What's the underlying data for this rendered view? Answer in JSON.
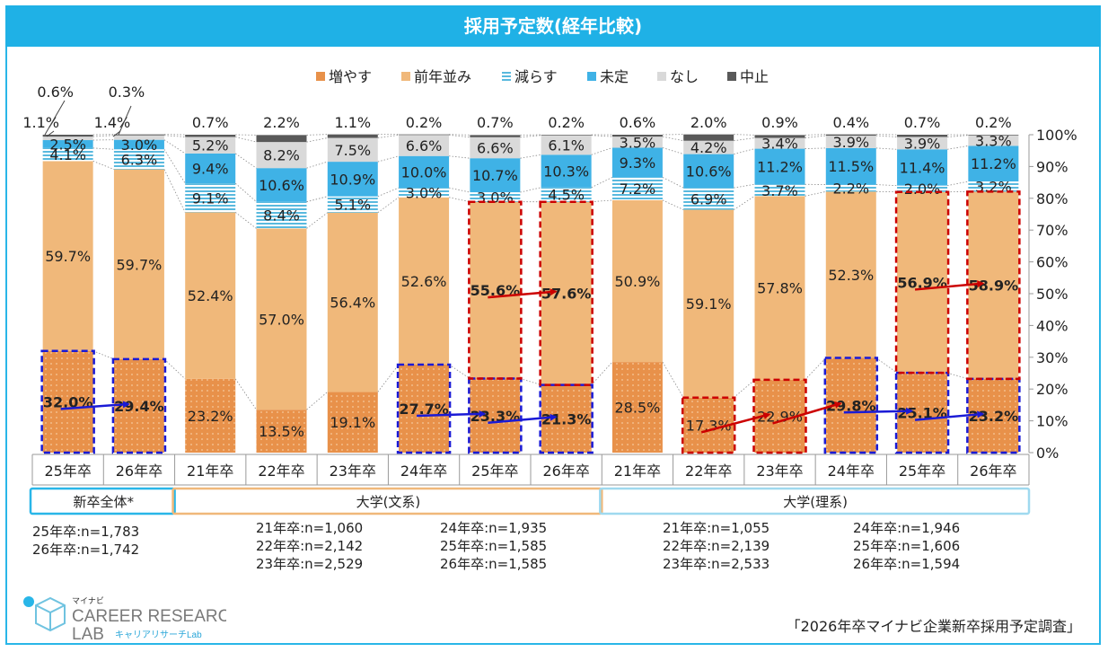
{
  "title": "採用予定数(経年比較)",
  "chart_data": {
    "type": "bar",
    "stacked": true,
    "title": "採用予定数(経年比較)",
    "ylim": [
      0,
      100
    ],
    "y_ticks": [
      "0%",
      "10%",
      "20%",
      "30%",
      "40%",
      "50%",
      "60%",
      "70%",
      "80%",
      "90%",
      "100%"
    ],
    "categories": [
      "25年卒",
      "26年卒",
      "21年卒",
      "22年卒",
      "23年卒",
      "24年卒",
      "25年卒",
      "26年卒",
      "21年卒",
      "22年卒",
      "23年卒",
      "24年卒",
      "25年卒",
      "26年卒"
    ],
    "series": [
      {
        "name": "増やす",
        "color": "#e8914a",
        "values": [
          32.0,
          29.4,
          23.2,
          13.5,
          19.1,
          27.7,
          23.3,
          21.3,
          28.5,
          17.3,
          22.9,
          29.8,
          25.1,
          23.2
        ]
      },
      {
        "name": "前年並み",
        "color": "#f0b87a",
        "values": [
          59.7,
          59.7,
          52.4,
          57.0,
          56.4,
          52.6,
          55.6,
          57.6,
          50.9,
          59.1,
          57.8,
          52.3,
          56.9,
          58.9
        ]
      },
      {
        "name": "減らす",
        "color": "#bfe8f5",
        "values": [
          4.1,
          6.3,
          9.1,
          8.4,
          5.1,
          3.0,
          3.0,
          4.5,
          7.2,
          6.9,
          3.7,
          2.2,
          2.0,
          3.2
        ]
      },
      {
        "name": "未定",
        "color": "#3fb2e6",
        "values": [
          2.5,
          3.0,
          9.4,
          10.6,
          10.9,
          10.0,
          10.7,
          10.3,
          9.3,
          10.6,
          11.2,
          11.5,
          11.4,
          11.2
        ]
      },
      {
        "name": "なし",
        "color": "#d9d9d9",
        "values": [
          1.1,
          1.4,
          5.2,
          8.2,
          7.5,
          6.6,
          6.6,
          6.1,
          3.5,
          4.2,
          3.4,
          3.9,
          3.9,
          3.3
        ]
      },
      {
        "name": "中止",
        "color": "#595959",
        "values": [
          0.6,
          0.3,
          0.7,
          2.2,
          1.1,
          0.2,
          0.7,
          0.2,
          0.6,
          2.0,
          0.9,
          0.4,
          0.7,
          0.2
        ]
      }
    ],
    "bold_labels": [
      {
        "bar": 0,
        "series": 0
      },
      {
        "bar": 1,
        "series": 0
      },
      {
        "bar": 5,
        "series": 0
      },
      {
        "bar": 6,
        "series": 0
      },
      {
        "bar": 7,
        "series": 0
      },
      {
        "bar": 6,
        "series": 1
      },
      {
        "bar": 7,
        "series": 1
      },
      {
        "bar": 11,
        "series": 0
      },
      {
        "bar": 12,
        "series": 0
      },
      {
        "bar": 13,
        "series": 0
      },
      {
        "bar": 12,
        "series": 1
      },
      {
        "bar": 13,
        "series": 1
      }
    ],
    "groups": [
      {
        "label": "新卒全体*",
        "from": 0,
        "to": 1,
        "color": "#29b6e8"
      },
      {
        "label": "大学(文系)",
        "from": 2,
        "to": 7,
        "color": "#f0b87a"
      },
      {
        "label": "大学(理系)",
        "from": 8,
        "to": 13,
        "color": "#9fd9ef"
      }
    ],
    "highlight_boxes": [
      {
        "bar": 0,
        "series": 0,
        "color": "#1a1ad6"
      },
      {
        "bar": 1,
        "series": 0,
        "color": "#1a1ad6"
      },
      {
        "bar": 5,
        "series": 0,
        "color": "#1a1ad6"
      },
      {
        "bar": 6,
        "series": 0,
        "color": "#1a1ad6"
      },
      {
        "bar": 7,
        "series": 0,
        "color": "#1a1ad6"
      },
      {
        "bar": 6,
        "series": 1,
        "color": "#cc0000"
      },
      {
        "bar": 7,
        "series": 1,
        "color": "#cc0000"
      },
      {
        "bar": 9,
        "series": 0,
        "color": "#cc0000"
      },
      {
        "bar": 10,
        "series": 0,
        "color": "#cc0000"
      },
      {
        "bar": 11,
        "series": 0,
        "color": "#1a1ad6"
      },
      {
        "bar": 12,
        "series": 0,
        "color": "#1a1ad6"
      },
      {
        "bar": 13,
        "series": 0,
        "color": "#1a1ad6"
      },
      {
        "bar": 12,
        "series": 1,
        "color": "#cc0000"
      },
      {
        "bar": 13,
        "series": 1,
        "color": "#cc0000"
      }
    ],
    "trend_arrows": [
      {
        "from_bar": 0,
        "to_bar": 1,
        "series": 0,
        "color": "#1a1ad6"
      },
      {
        "from_bar": 5,
        "to_bar": 6,
        "series": 0,
        "color": "#1a1ad6"
      },
      {
        "from_bar": 6,
        "to_bar": 7,
        "series": 0,
        "color": "#1a1ad6"
      },
      {
        "from_bar": 6,
        "to_bar": 7,
        "series": 1,
        "color": "#cc0000"
      },
      {
        "from_bar": 9,
        "to_bar": 10,
        "series": 0,
        "color": "#cc0000"
      },
      {
        "from_bar": 10,
        "to_bar": 11,
        "series": 0,
        "color": "#cc0000"
      },
      {
        "from_bar": 11,
        "to_bar": 12,
        "series": 0,
        "color": "#1a1ad6"
      },
      {
        "from_bar": 12,
        "to_bar": 13,
        "series": 0,
        "color": "#1a1ad6"
      },
      {
        "from_bar": 12,
        "to_bar": 13,
        "series": 1,
        "color": "#cc0000"
      }
    ]
  },
  "notes": {
    "overall": [
      "25年卒:n=1,783",
      "26年卒:n=1,742"
    ],
    "bunkei_a": [
      "21年卒:n=1,060",
      "22年卒:n=2,142",
      "23年卒:n=2,529"
    ],
    "bunkei_b": [
      "24年卒:n=1,935",
      "25年卒:n=1,585",
      "26年卒:n=1,585"
    ],
    "rikei_a": [
      "21年卒:n=1,055",
      "22年卒:n=2,139",
      "23年卒:n=2,533"
    ],
    "rikei_b": [
      "24年卒:n=1,946",
      "25年卒:n=1,606",
      "26年卒:n=1,594"
    ]
  },
  "logo": {
    "small": "マイナビ",
    "line1": "CAREER RESEARCH",
    "line2": "LAB",
    "sub": "キャリアリサーチLab"
  },
  "source": "「2026年卒マイナビ企業新卒採用予定調査」"
}
